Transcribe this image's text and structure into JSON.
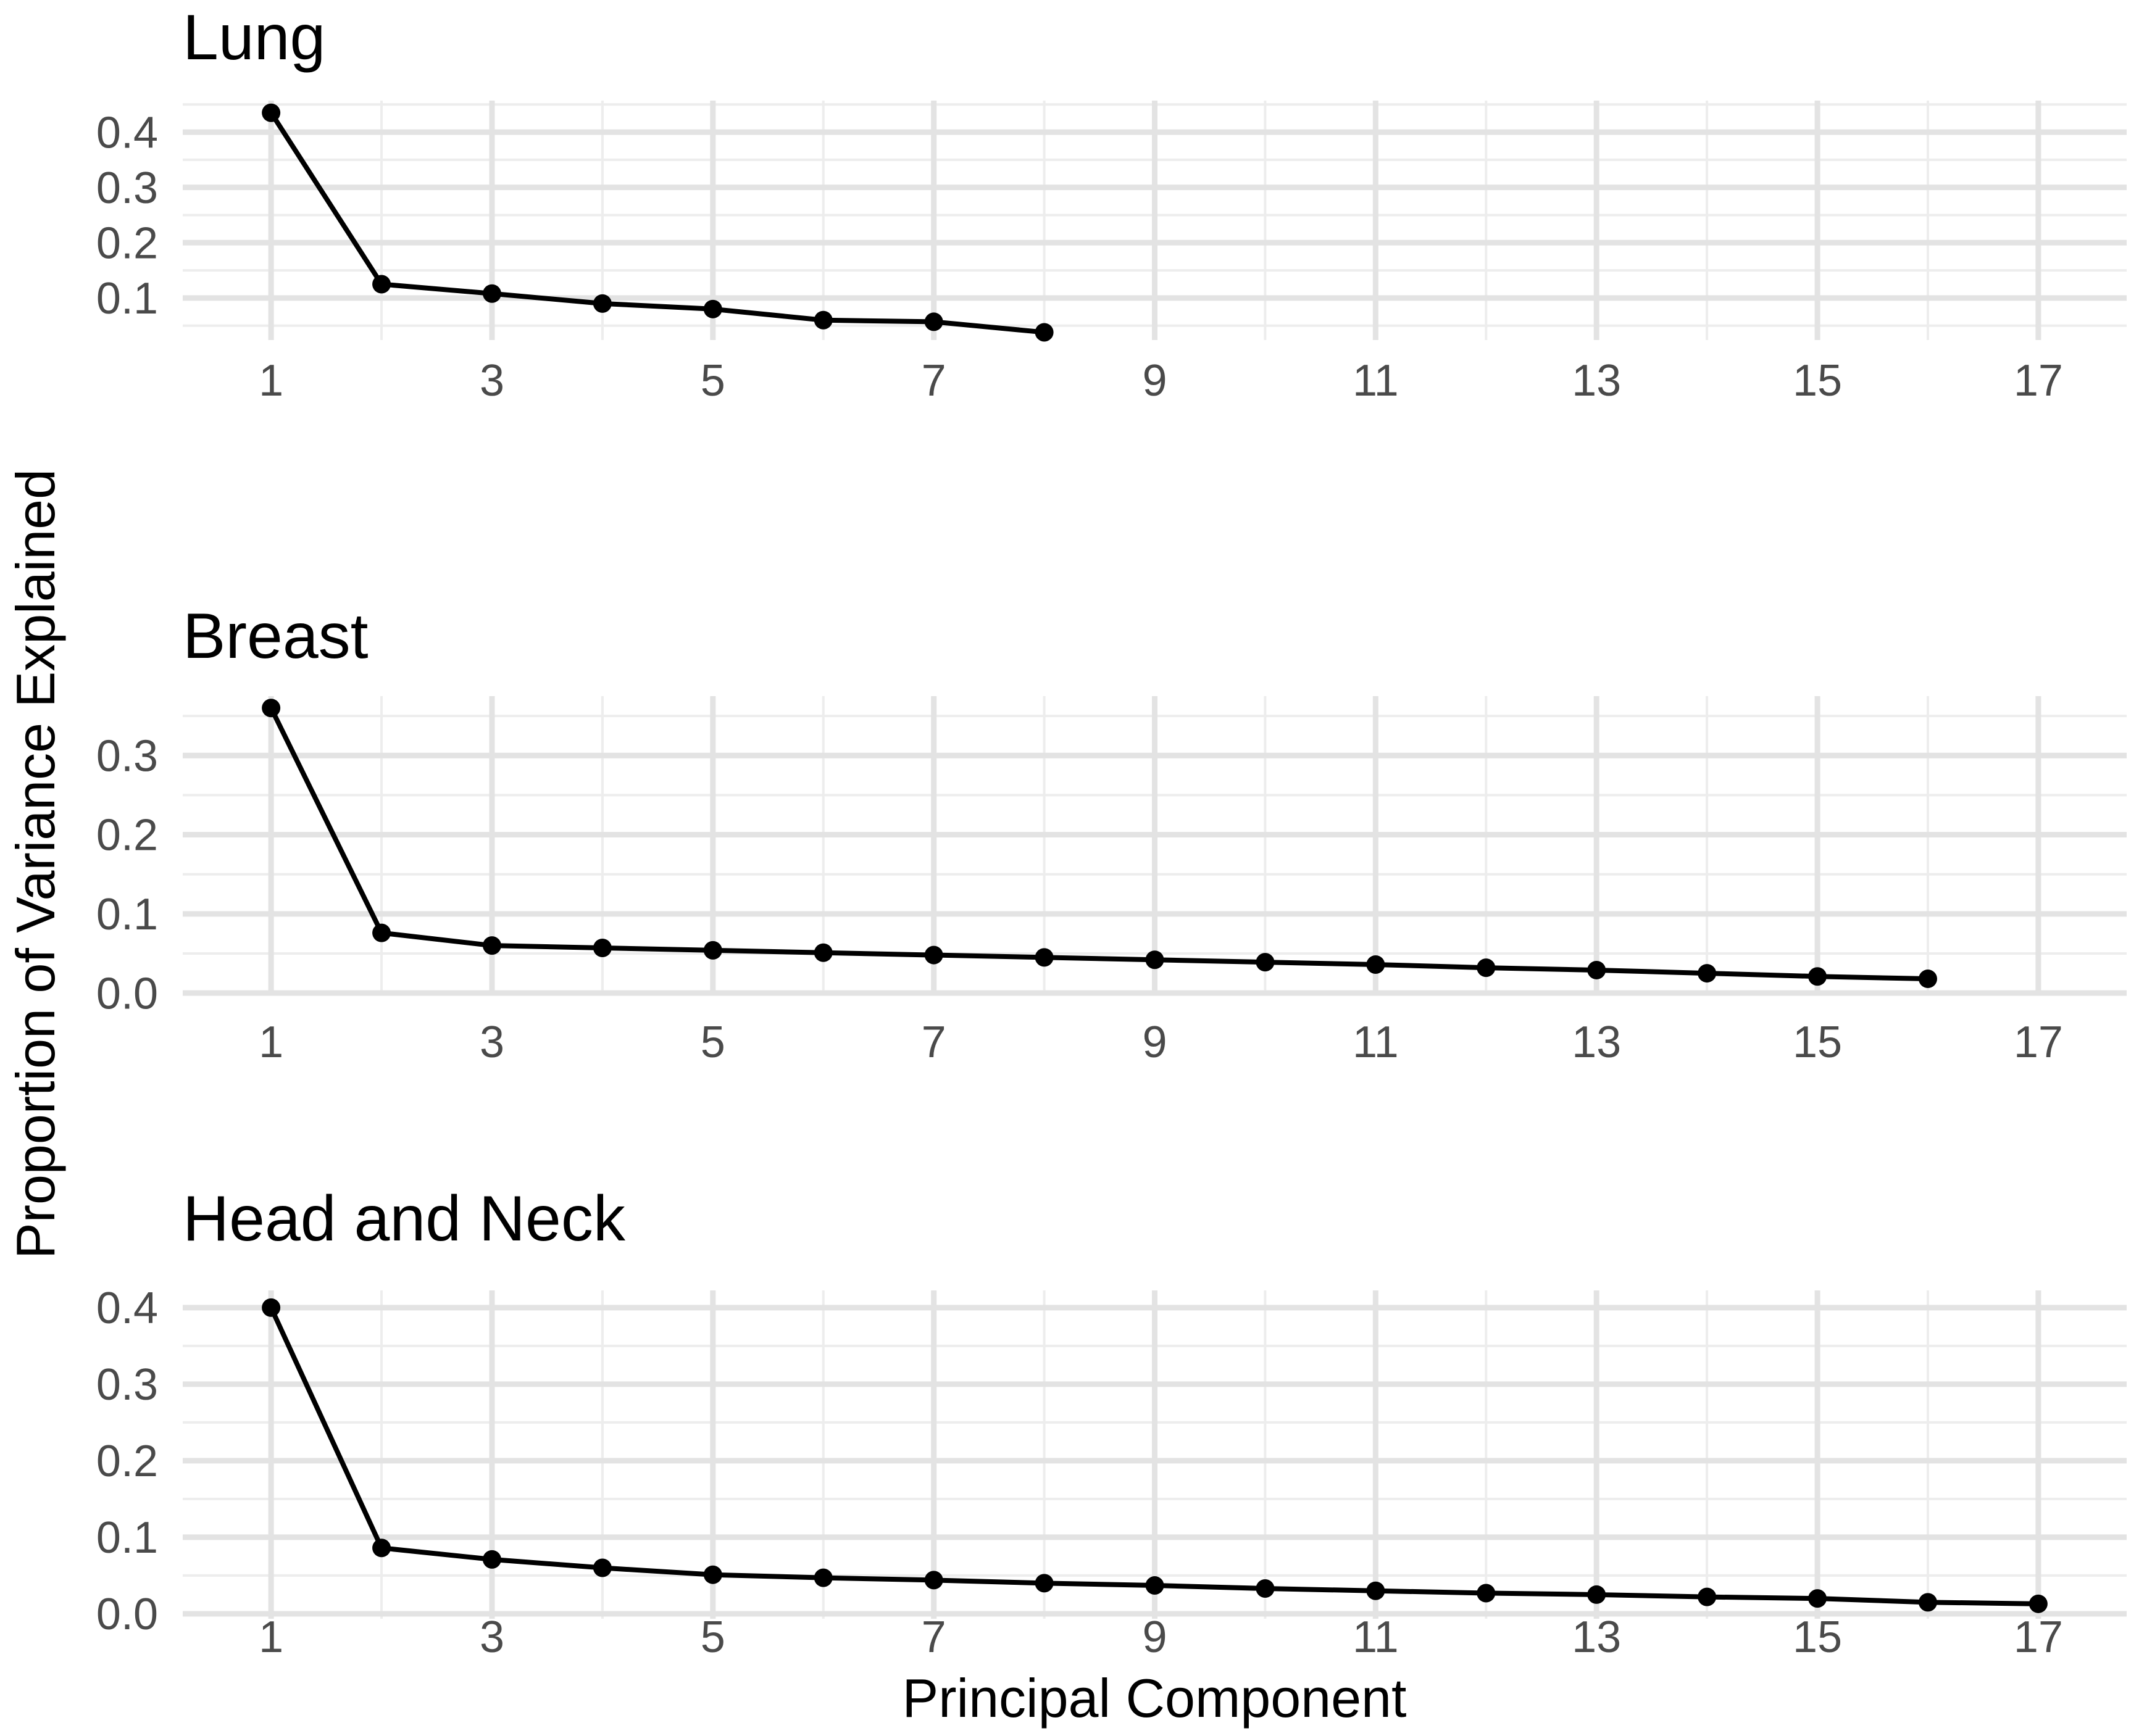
{
  "chart_data": {
    "type": "line",
    "title": "",
    "xlabel": "Principal Component",
    "ylabel": "Proportion of Variance Explained",
    "grid": true,
    "legend": false,
    "xlim": [
      0.2,
      17.8
    ],
    "x_breaks": [
      1,
      3,
      5,
      7,
      9,
      11,
      13,
      15,
      17
    ],
    "x_tick_labels": [
      "1",
      "3",
      "5",
      "7",
      "9",
      "11",
      "13",
      "15",
      "17"
    ],
    "x_minor_breaks": [
      2,
      4,
      6,
      8,
      10,
      12,
      14,
      16
    ],
    "panels": [
      {
        "title": "Lung",
        "x": [
          1,
          2,
          3,
          4,
          5,
          6,
          7,
          8
        ],
        "values": [
          0.435,
          0.125,
          0.108,
          0.09,
          0.08,
          0.06,
          0.057,
          0.038
        ],
        "ylim": [
          0.024,
          0.457
        ],
        "ytick_values": [
          0.1,
          0.2,
          0.3,
          0.4
        ],
        "ytick_labels": [
          "0.1",
          "0.2",
          "0.3",
          "0.4"
        ],
        "y_minor_breaks": [
          0.05,
          0.15,
          0.25,
          0.35,
          0.45
        ]
      },
      {
        "title": "Breast",
        "x": [
          1,
          2,
          3,
          4,
          5,
          6,
          7,
          8,
          9,
          10,
          11,
          12,
          13,
          14,
          15,
          16
        ],
        "values": [
          0.36,
          0.076,
          0.06,
          0.057,
          0.054,
          0.051,
          0.048,
          0.045,
          0.042,
          0.039,
          0.036,
          0.032,
          0.029,
          0.025,
          0.021,
          0.018
        ],
        "ylim": [
          -0.003,
          0.375
        ],
        "ytick_values": [
          0.0,
          0.1,
          0.2,
          0.3
        ],
        "ytick_labels": [
          "0.0",
          "0.1",
          "0.2",
          "0.3"
        ],
        "y_minor_breaks": [
          0.05,
          0.15,
          0.25,
          0.35
        ]
      },
      {
        "title": "Head and Neck",
        "x": [
          1,
          2,
          3,
          4,
          5,
          6,
          7,
          8,
          9,
          10,
          11,
          12,
          13,
          14,
          15,
          16,
          17
        ],
        "values": [
          0.4,
          0.086,
          0.071,
          0.06,
          0.051,
          0.047,
          0.044,
          0.04,
          0.037,
          0.033,
          0.03,
          0.027,
          0.025,
          0.022,
          0.02,
          0.015,
          0.013
        ],
        "ylim": [
          -0.0065,
          0.4225
        ],
        "ytick_values": [
          0.0,
          0.1,
          0.2,
          0.3,
          0.4
        ],
        "ytick_labels": [
          "0.0",
          "0.1",
          "0.2",
          "0.3",
          "0.4"
        ],
        "y_minor_breaks": [
          0.05,
          0.15,
          0.25,
          0.35
        ]
      }
    ],
    "colors": {
      "series": "#000000",
      "grid_major": "#E3E3E3",
      "grid_minor": "#EDEDED",
      "tick_label": "#4A4A4A",
      "title": "#000000",
      "background": "#FFFFFF"
    }
  }
}
